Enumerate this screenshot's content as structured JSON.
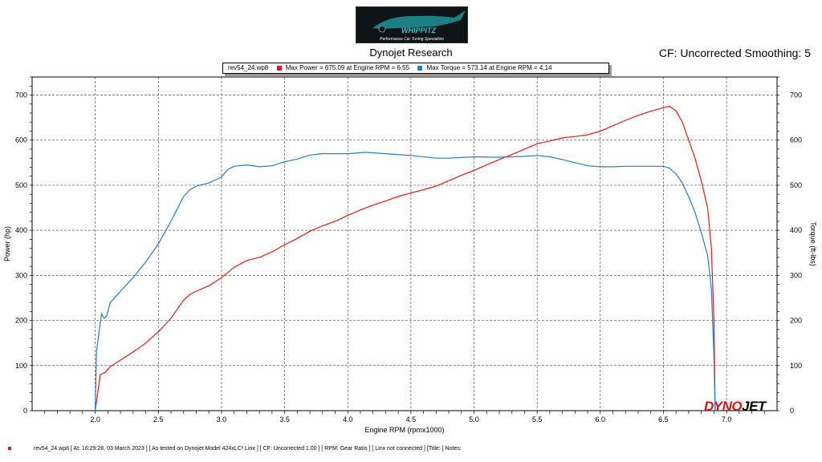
{
  "header": {
    "title": "Dynojet Research",
    "cf_label": "CF: Uncorrected Smoothing: 5"
  },
  "logo": {
    "lines": [
      "WHIPPITZ",
      "Performance Car Tuning Specialists"
    ]
  },
  "legend": {
    "file": "rev54_24.wp8",
    "power_text": "Max Power = 675.09 at Engine RPM = 6.55",
    "torque_text": "Max Torque = 573.14 at Engine RPM = 4.14"
  },
  "brand": {
    "dyno": "DYNO",
    "jet": "JET"
  },
  "footer": {
    "text": "rev54_24.wp8  [ At: 16:29:28, 03 March 2023 ]  [ As tested on Dynojet Model 424xLC² Linx ]  [ CF: Uncorrected 1.00 ]  [ RPM: Gear Ratio ]  [ Linx not connected ]  [Title: ]   Notes:"
  },
  "colors": {
    "power": "#e31a1c",
    "torque": "#2b7bbf",
    "grid": "#555555"
  },
  "chart_data": {
    "type": "line",
    "title": "Dynojet Research",
    "xlabel": "Engine RPM (rpmx1000)",
    "ylabel": "Power (hp)",
    "y2label": "Torque (ft-lbs)",
    "xlim": [
      1.5,
      7.4
    ],
    "ylim": [
      0,
      740
    ],
    "y2lim": [
      0,
      740
    ],
    "x_ticks": [
      "2.0",
      "2.5",
      "3.0",
      "3.5",
      "4.0",
      "4.5",
      "5.0",
      "5.5",
      "6.0",
      "6.5",
      "7.0"
    ],
    "y_ticks": [
      "0",
      "100",
      "200",
      "300",
      "400",
      "500",
      "600",
      "700"
    ],
    "grid": true,
    "series": [
      {
        "name": "Power",
        "color": "#e31a1c",
        "points": [
          [
            2.0,
            0
          ],
          [
            2.02,
            40
          ],
          [
            2.04,
            80
          ],
          [
            2.08,
            85
          ],
          [
            2.12,
            98
          ],
          [
            2.2,
            112
          ],
          [
            2.3,
            130
          ],
          [
            2.4,
            150
          ],
          [
            2.5,
            175
          ],
          [
            2.6,
            205
          ],
          [
            2.7,
            245
          ],
          [
            2.75,
            258
          ],
          [
            2.8,
            265
          ],
          [
            2.9,
            277
          ],
          [
            3.0,
            295
          ],
          [
            3.1,
            318
          ],
          [
            3.2,
            333
          ],
          [
            3.3,
            340
          ],
          [
            3.4,
            352
          ],
          [
            3.5,
            368
          ],
          [
            3.6,
            382
          ],
          [
            3.7,
            398
          ],
          [
            3.8,
            410
          ],
          [
            3.9,
            420
          ],
          [
            4.0,
            433
          ],
          [
            4.1,
            445
          ],
          [
            4.2,
            456
          ],
          [
            4.3,
            465
          ],
          [
            4.4,
            475
          ],
          [
            4.5,
            483
          ],
          [
            4.6,
            490
          ],
          [
            4.7,
            498
          ],
          [
            4.8,
            510
          ],
          [
            4.9,
            522
          ],
          [
            5.0,
            533
          ],
          [
            5.1,
            545
          ],
          [
            5.2,
            557
          ],
          [
            5.3,
            568
          ],
          [
            5.4,
            580
          ],
          [
            5.5,
            592
          ],
          [
            5.6,
            598
          ],
          [
            5.7,
            605
          ],
          [
            5.8,
            608
          ],
          [
            5.9,
            612
          ],
          [
            6.0,
            620
          ],
          [
            6.1,
            632
          ],
          [
            6.2,
            644
          ],
          [
            6.3,
            655
          ],
          [
            6.4,
            664
          ],
          [
            6.5,
            672
          ],
          [
            6.55,
            675
          ],
          [
            6.6,
            665
          ],
          [
            6.65,
            640
          ],
          [
            6.7,
            600
          ],
          [
            6.75,
            560
          ],
          [
            6.8,
            510
          ],
          [
            6.85,
            450
          ],
          [
            6.88,
            360
          ],
          [
            6.9,
            200
          ],
          [
            6.91,
            0
          ]
        ]
      },
      {
        "name": "Torque",
        "color": "#2b7bbf",
        "points": [
          [
            2.0,
            0
          ],
          [
            2.01,
            130
          ],
          [
            2.03,
            175
          ],
          [
            2.05,
            215
          ],
          [
            2.07,
            205
          ],
          [
            2.09,
            210
          ],
          [
            2.12,
            240
          ],
          [
            2.2,
            265
          ],
          [
            2.3,
            295
          ],
          [
            2.4,
            330
          ],
          [
            2.5,
            370
          ],
          [
            2.6,
            420
          ],
          [
            2.7,
            475
          ],
          [
            2.75,
            490
          ],
          [
            2.8,
            498
          ],
          [
            2.9,
            505
          ],
          [
            3.0,
            518
          ],
          [
            3.05,
            535
          ],
          [
            3.1,
            542
          ],
          [
            3.2,
            545
          ],
          [
            3.3,
            541
          ],
          [
            3.4,
            543
          ],
          [
            3.5,
            552
          ],
          [
            3.6,
            558
          ],
          [
            3.7,
            567
          ],
          [
            3.8,
            570
          ],
          [
            4.0,
            570
          ],
          [
            4.14,
            573
          ],
          [
            4.3,
            570
          ],
          [
            4.5,
            566
          ],
          [
            4.7,
            560
          ],
          [
            4.8,
            560
          ],
          [
            5.0,
            563
          ],
          [
            5.2,
            562
          ],
          [
            5.4,
            564
          ],
          [
            5.5,
            566
          ],
          [
            5.6,
            563
          ],
          [
            5.7,
            557
          ],
          [
            5.8,
            550
          ],
          [
            5.9,
            543
          ],
          [
            6.0,
            541
          ],
          [
            6.1,
            541
          ],
          [
            6.2,
            542
          ],
          [
            6.4,
            542
          ],
          [
            6.5,
            542
          ],
          [
            6.55,
            538
          ],
          [
            6.6,
            525
          ],
          [
            6.65,
            505
          ],
          [
            6.7,
            475
          ],
          [
            6.75,
            440
          ],
          [
            6.8,
            395
          ],
          [
            6.85,
            345
          ],
          [
            6.88,
            270
          ],
          [
            6.9,
            120
          ],
          [
            6.91,
            0
          ]
        ]
      }
    ]
  }
}
